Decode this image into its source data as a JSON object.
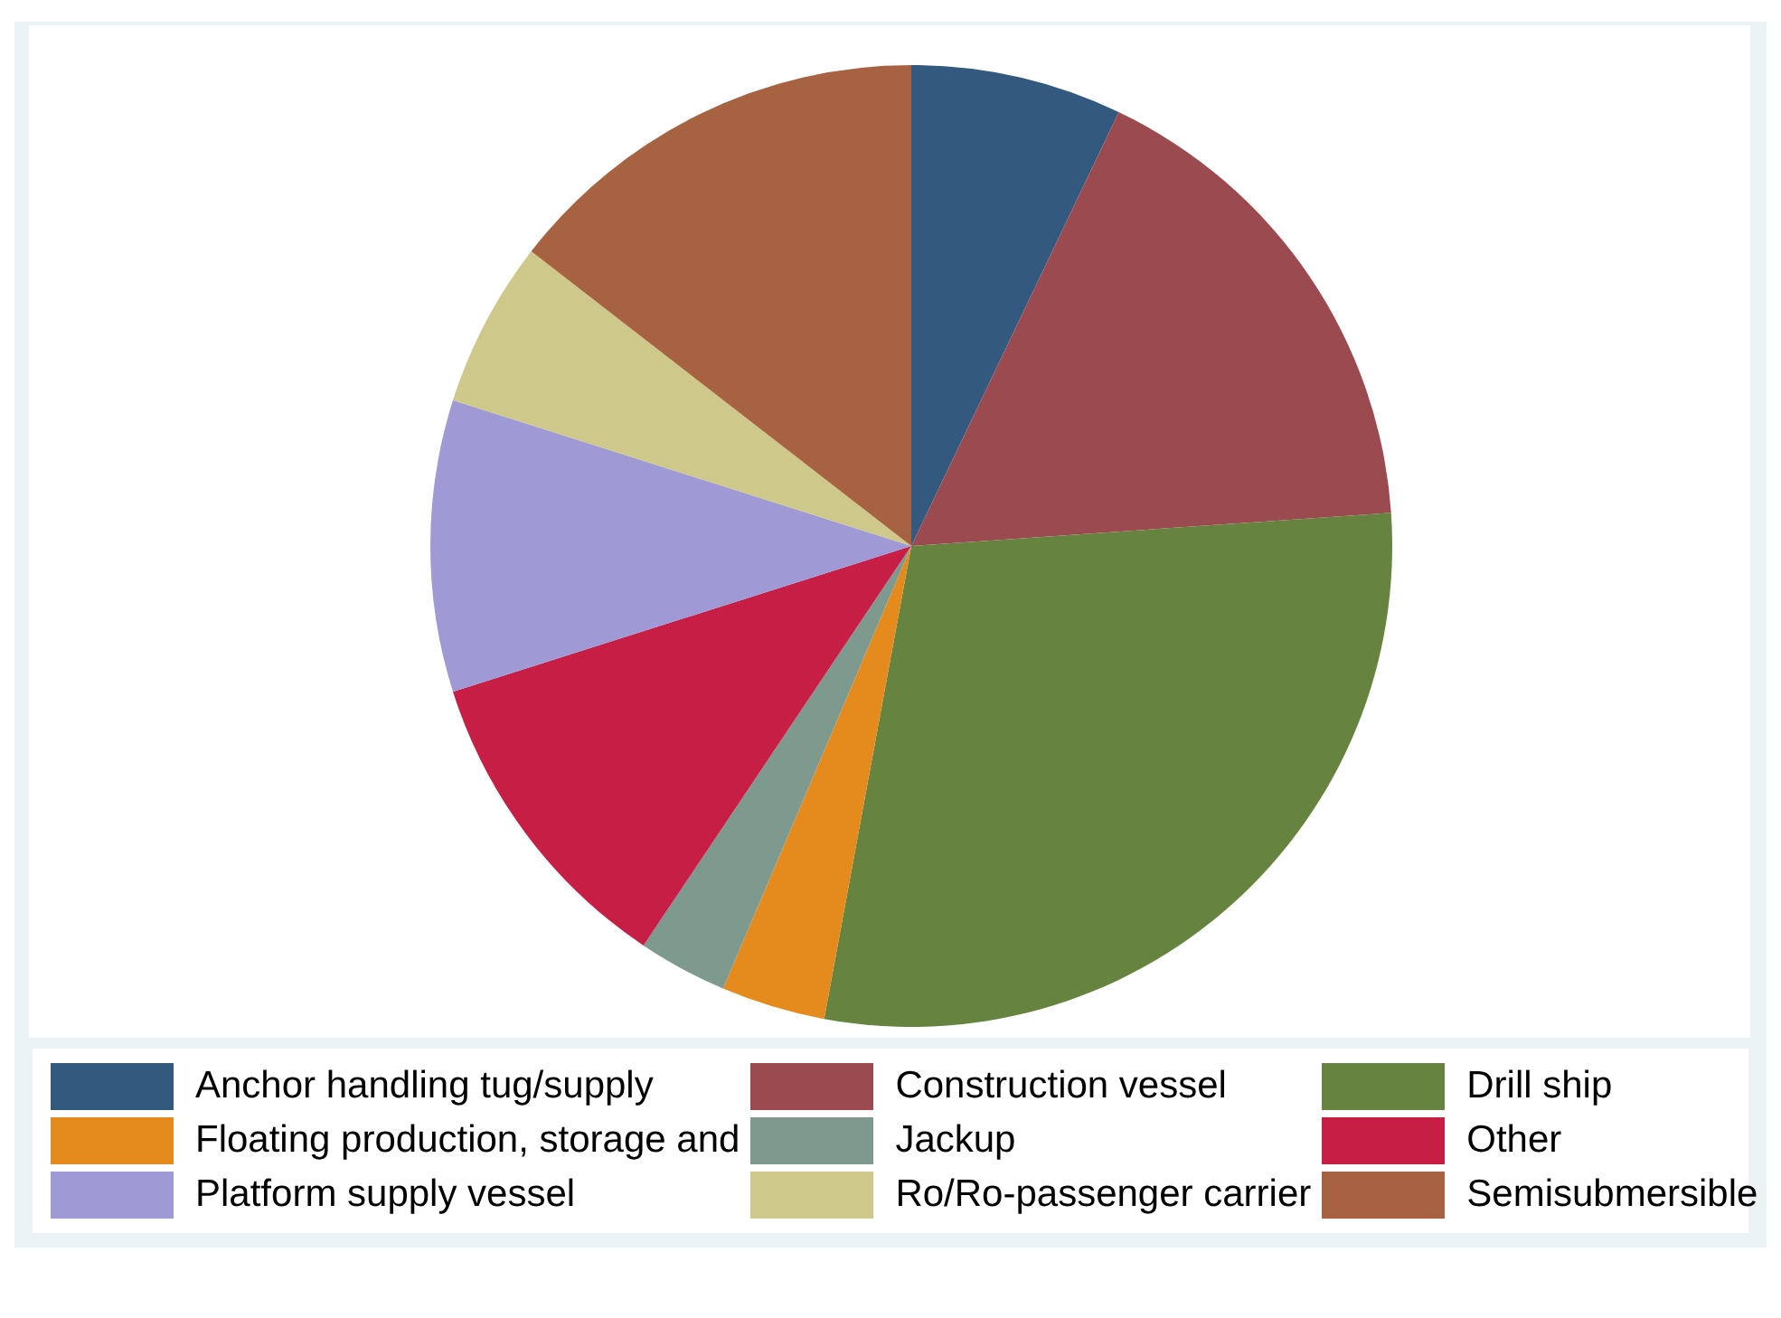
{
  "chart_data": {
    "type": "pie",
    "categories": [
      "Anchor handling tug/supply",
      "Construction vessel",
      "Drill ship",
      "Floating production, storage and",
      "Jackup",
      "Other",
      "Platform supply vessel",
      "Ro/Ro-passenger carrier",
      "Semisubmersible"
    ],
    "values": [
      7.1,
      16.8,
      29.0,
      3.5,
      3.0,
      10.7,
      9.8,
      5.6,
      14.5
    ],
    "colors": [
      "#335a7e",
      "#9b4a50",
      "#66843f",
      "#e58b1e",
      "#7e9a8e",
      "#c71e46",
      "#9f99d5",
      "#cec98b",
      "#a76341"
    ],
    "legend": "bottom"
  }
}
